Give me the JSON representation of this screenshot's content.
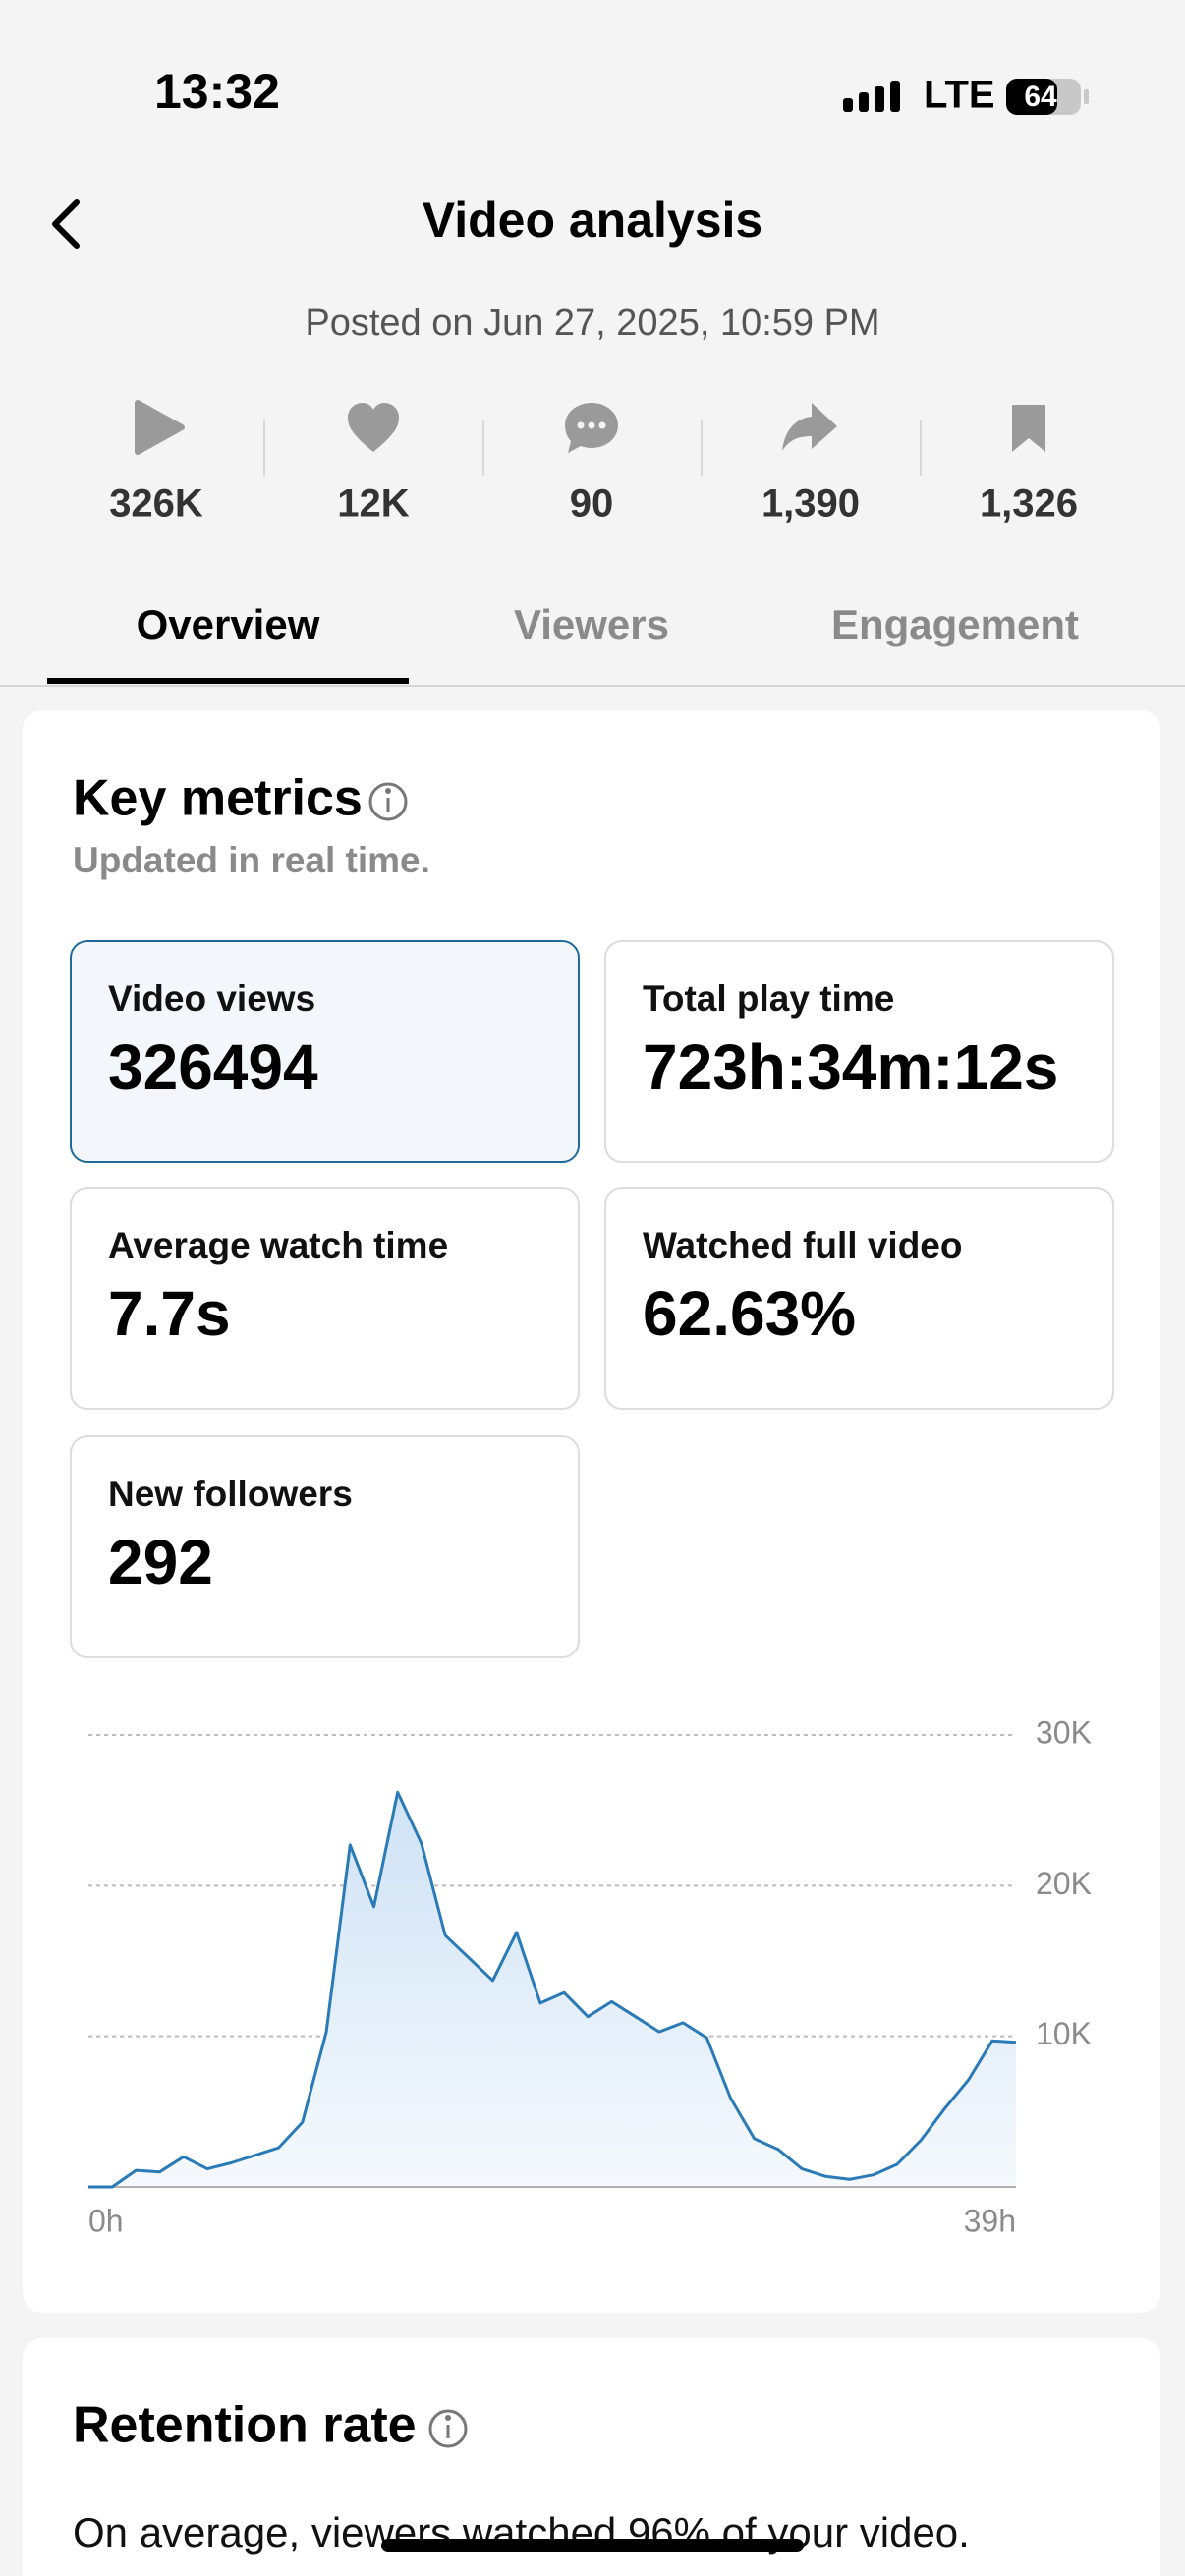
{
  "status_bar": {
    "time": "13:32",
    "network": "LTE",
    "battery": "64"
  },
  "header": {
    "title": "Video analysis",
    "posted": "Posted on Jun 27, 2025, 10:59 PM"
  },
  "stats": [
    "326K",
    "12K",
    "90",
    "1,390",
    "1,326"
  ],
  "tabs": [
    "Overview",
    "Viewers",
    "Engagement"
  ],
  "key_metrics": {
    "title": "Key metrics",
    "subtitle": "Updated in real time.",
    "metrics": [
      {
        "label": "Video views",
        "value": "326494"
      },
      {
        "label": "Total play time",
        "value": "723h:34m:12s"
      },
      {
        "label": "Average watch time",
        "value": "7.7s"
      },
      {
        "label": "Watched full video",
        "value": "62.63%"
      },
      {
        "label": "New followers",
        "value": "292"
      }
    ]
  },
  "chart_data": {
    "type": "line",
    "x": [
      0,
      1,
      2,
      3,
      4,
      5,
      6,
      7,
      8,
      9,
      10,
      11,
      12,
      13,
      14,
      15,
      16,
      17,
      18,
      19,
      20,
      21,
      22,
      23,
      24,
      25,
      26,
      27,
      28,
      29,
      30,
      31,
      32,
      33,
      34,
      35,
      36,
      37,
      38,
      39
    ],
    "values": [
      0,
      0,
      1100,
      1000,
      2000,
      1200,
      1600,
      2100,
      2600,
      4300,
      10300,
      22700,
      18600,
      26200,
      22800,
      16700,
      15200,
      13700,
      16900,
      12200,
      12900,
      11300,
      12300,
      11300,
      10300,
      10900,
      9900,
      5900,
      3200,
      2500,
      1200,
      700,
      500,
      800,
      1500,
      3100,
      5200,
      7100,
      9700,
      9600
    ],
    "color": "#2a7ab8",
    "xlim": [
      0,
      39
    ],
    "xticks": [
      {
        "value": 0,
        "label": "0h"
      },
      {
        "value": 39,
        "label": "39h"
      }
    ],
    "ylim": [
      0,
      30000
    ],
    "yticks": [
      {
        "value": 10000,
        "label": "10K"
      },
      {
        "value": 20000,
        "label": "20K"
      },
      {
        "value": 30000,
        "label": "30K"
      }
    ],
    "grid": true
  },
  "retention": {
    "title": "Retention rate",
    "text": "On average, viewers watched 96% of your video."
  }
}
